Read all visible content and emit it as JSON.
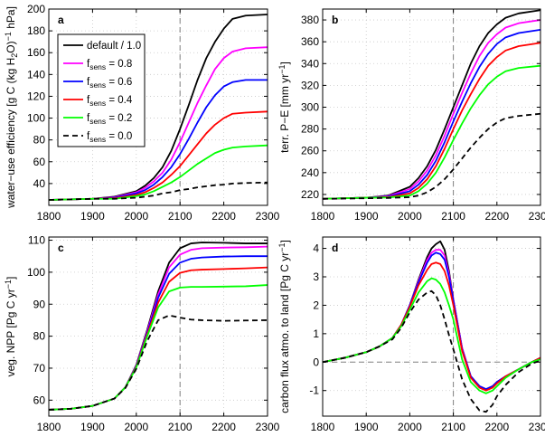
{
  "figure": {
    "legend": [
      {
        "label": "default / 1.0",
        "f": "",
        "color": "#000000",
        "dash": false
      },
      {
        "label": "",
        "f": "0.8",
        "color": "#ff00ff",
        "dash": false
      },
      {
        "label": "",
        "f": "0.6",
        "color": "#0000ff",
        "dash": false
      },
      {
        "label": "",
        "f": "0.4",
        "color": "#ff0000",
        "dash": false
      },
      {
        "label": "",
        "f": "0.2",
        "color": "#00ff00",
        "dash": false
      },
      {
        "label": "",
        "f": "0.0",
        "color": "#000000",
        "dash": true
      }
    ],
    "legend_sub": "sens",
    "legend_prefix": "f",
    "legend_eq": " = "
  },
  "chart_data": [
    {
      "type": "line",
      "panel_label": "a",
      "ylabel_parts": [
        "water−use efficiency [g C (kg H",
        "2",
        "O)",
        "−1",
        " hPa]"
      ],
      "xlim": [
        1800,
        2300
      ],
      "ylim": [
        20,
        200
      ],
      "xticks": [
        1800,
        1900,
        2000,
        2100,
        2200,
        2300
      ],
      "yticks": [
        40,
        60,
        80,
        100,
        120,
        140,
        160,
        180,
        200
      ],
      "vline": 2100,
      "hline": null,
      "grid": true,
      "x": [
        1800,
        1850,
        1900,
        1950,
        2000,
        2020,
        2040,
        2060,
        2080,
        2100,
        2120,
        2140,
        2160,
        2180,
        2200,
        2220,
        2250,
        2300
      ],
      "series": [
        {
          "values": [
            25,
            25.5,
            26,
            28,
            33,
            38,
            45,
            55,
            70,
            90,
            112,
            135,
            155,
            170,
            182,
            191,
            194,
            195
          ]
        },
        {
          "values": [
            25,
            25.5,
            26,
            27.5,
            32,
            36,
            42,
            50,
            62,
            78,
            96,
            114,
            130,
            145,
            155,
            161,
            164,
            165
          ]
        },
        {
          "values": [
            25,
            25.5,
            26,
            27,
            31,
            34,
            39,
            46,
            55,
            67,
            81,
            96,
            110,
            121,
            129,
            133,
            135,
            135
          ]
        },
        {
          "values": [
            25,
            25.5,
            26,
            26.5,
            29.5,
            32,
            36,
            41,
            48,
            56,
            66,
            76,
            86,
            94,
            100,
            104,
            105,
            106
          ]
        },
        {
          "values": [
            25,
            25.5,
            26,
            26,
            28.5,
            30,
            33,
            37,
            41,
            46,
            52,
            58,
            63,
            68,
            71,
            73,
            74,
            75
          ]
        },
        {
          "values": [
            25,
            25.5,
            26,
            26,
            27,
            28,
            29,
            31,
            32,
            34,
            35,
            36.5,
            37.5,
            38.5,
            39,
            40,
            40.5,
            41
          ]
        }
      ]
    },
    {
      "type": "line",
      "panel_label": "b",
      "ylabel_parts": [
        "terr. P−E [mm yr",
        "−1",
        "]"
      ],
      "xlim": [
        1800,
        2300
      ],
      "ylim": [
        210,
        390
      ],
      "xticks": [
        1800,
        1900,
        2000,
        2100,
        2200,
        2300
      ],
      "yticks": [
        220,
        240,
        260,
        280,
        300,
        320,
        340,
        360,
        380
      ],
      "vline": 2100,
      "hline": null,
      "grid": true,
      "x": [
        1800,
        1850,
        1900,
        1950,
        2000,
        2020,
        2040,
        2060,
        2080,
        2100,
        2120,
        2140,
        2160,
        2180,
        2200,
        2220,
        2250,
        2300
      ],
      "series": [
        {
          "values": [
            216,
            216.5,
            217,
            219,
            227,
            235,
            246,
            261,
            280,
            300,
            320,
            340,
            356,
            368,
            376,
            382,
            386,
            389
          ]
        },
        {
          "values": [
            216,
            216.5,
            217,
            218.5,
            225,
            232,
            242,
            256,
            274,
            294,
            313,
            331,
            347,
            359,
            367,
            373,
            377,
            380
          ]
        },
        {
          "values": [
            216,
            216.5,
            217,
            218,
            223,
            229,
            238,
            251,
            268,
            287,
            305,
            322,
            337,
            349,
            358,
            364,
            368,
            371
          ]
        },
        {
          "values": [
            216,
            216.5,
            217,
            217.5,
            221,
            226,
            234,
            246,
            262,
            280,
            297,
            312,
            326,
            338,
            346,
            352,
            356,
            359
          ]
        },
        {
          "values": [
            216,
            216.5,
            217,
            217.2,
            219,
            223,
            230,
            240,
            254,
            270,
            285,
            299,
            311,
            321,
            328,
            333,
            336,
            338
          ]
        },
        {
          "values": [
            216,
            216.2,
            216.5,
            216.8,
            217.5,
            219,
            222,
            227,
            234,
            243,
            253,
            263,
            272,
            280,
            286,
            290,
            292,
            294
          ]
        }
      ]
    },
    {
      "type": "line",
      "panel_label": "c",
      "ylabel_parts": [
        "veg. NPP [Pg C yr",
        "−1",
        "]"
      ],
      "xlim": [
        1800,
        2300
      ],
      "ylim": [
        55,
        111
      ],
      "xticks": [
        1800,
        1900,
        2000,
        2100,
        2200,
        2300
      ],
      "yticks": [
        60,
        70,
        80,
        90,
        100,
        110
      ],
      "vline": 2100,
      "hline": null,
      "grid": true,
      "x": [
        1800,
        1850,
        1900,
        1950,
        1975,
        2000,
        2025,
        2050,
        2075,
        2100,
        2125,
        2150,
        2200,
        2250,
        2300
      ],
      "series": [
        {
          "values": [
            57,
            57.3,
            58.2,
            60.5,
            64,
            71,
            82,
            94,
            103,
            107.5,
            109,
            109.3,
            109.2,
            109,
            109
          ]
        },
        {
          "values": [
            57,
            57.3,
            58.2,
            60.5,
            64,
            70.8,
            81.5,
            93,
            101.5,
            105.5,
            107,
            107.5,
            107.7,
            107.8,
            108
          ]
        },
        {
          "values": [
            57,
            57.3,
            58.2,
            60.5,
            64,
            70.6,
            81,
            92,
            99.5,
            103,
            104.2,
            104.6,
            104.9,
            105,
            105
          ]
        },
        {
          "values": [
            57,
            57.3,
            58.2,
            60.5,
            64,
            70.4,
            80.5,
            90.5,
            97,
            99.8,
            100.6,
            100.8,
            101,
            101.2,
            101.5
          ]
        },
        {
          "values": [
            57,
            57.3,
            58.2,
            60.5,
            64,
            70.2,
            80,
            89,
            94,
            95.2,
            95.4,
            95.4,
            95.5,
            95.6,
            96
          ]
        },
        {
          "values": [
            57,
            57.3,
            58.2,
            60.5,
            63.8,
            69.8,
            78.5,
            85,
            86.5,
            85.8,
            85.2,
            85,
            84.8,
            84.9,
            85
          ]
        }
      ]
    },
    {
      "type": "line",
      "panel_label": "d",
      "ylabel_parts": [
        "carbon flux atmo. to land [Pg C yr",
        "−1",
        "]"
      ],
      "xlim": [
        1800,
        2300
      ],
      "ylim": [
        -1.9,
        4.4
      ],
      "xticks": [
        1800,
        1900,
        2000,
        2100,
        2200,
        2300
      ],
      "yticks": [
        -1,
        0,
        1,
        2,
        3,
        4
      ],
      "vline": 2100,
      "hline": 0,
      "grid": true,
      "x": [
        1800,
        1850,
        1900,
        1930,
        1960,
        1980,
        2000,
        2020,
        2040,
        2050,
        2060,
        2070,
        2080,
        2090,
        2100,
        2120,
        2140,
        2160,
        2175,
        2190,
        2200,
        2220,
        2250,
        2280,
        2300
      ],
      "series": [
        {
          "values": [
            0,
            0.15,
            0.35,
            0.55,
            0.85,
            1.3,
            2.0,
            2.9,
            3.7,
            4.0,
            4.15,
            4.25,
            3.95,
            3.2,
            2.2,
            0.5,
            -0.5,
            -0.85,
            -0.95,
            -0.85,
            -0.7,
            -0.5,
            -0.25,
            0,
            0.15
          ]
        },
        {
          "values": [
            0,
            0.15,
            0.35,
            0.55,
            0.85,
            1.3,
            2.0,
            2.85,
            3.6,
            3.85,
            3.95,
            3.95,
            3.75,
            3.1,
            2.2,
            0.5,
            -0.5,
            -0.85,
            -0.95,
            -0.85,
            -0.7,
            -0.5,
            -0.25,
            0,
            0.15
          ]
        },
        {
          "values": [
            0,
            0.15,
            0.35,
            0.55,
            0.85,
            1.3,
            2.0,
            2.8,
            3.5,
            3.75,
            3.85,
            3.8,
            3.6,
            3.0,
            2.15,
            0.45,
            -0.5,
            -0.85,
            -0.95,
            -0.85,
            -0.7,
            -0.5,
            -0.25,
            0,
            0.15
          ]
        },
        {
          "values": [
            0,
            0.15,
            0.35,
            0.55,
            0.85,
            1.3,
            1.95,
            2.7,
            3.25,
            3.45,
            3.5,
            3.45,
            3.2,
            2.7,
            2.0,
            0.4,
            -0.55,
            -0.9,
            -1.0,
            -0.9,
            -0.75,
            -0.5,
            -0.25,
            0,
            0.15
          ]
        },
        {
          "values": [
            0,
            0.15,
            0.35,
            0.55,
            0.85,
            1.25,
            1.85,
            2.45,
            2.85,
            2.95,
            2.9,
            2.75,
            2.45,
            2.0,
            1.5,
            0.1,
            -0.7,
            -1.0,
            -1.1,
            -1.0,
            -0.85,
            -0.55,
            -0.25,
            0,
            0.1
          ]
        },
        {
          "values": [
            0,
            0.15,
            0.35,
            0.55,
            0.8,
            1.2,
            1.75,
            2.2,
            2.45,
            2.5,
            2.35,
            2.0,
            1.5,
            0.95,
            0.45,
            -0.6,
            -1.3,
            -1.7,
            -1.75,
            -1.5,
            -1.2,
            -0.8,
            -0.35,
            -0.05,
            0.05
          ]
        }
      ]
    }
  ]
}
